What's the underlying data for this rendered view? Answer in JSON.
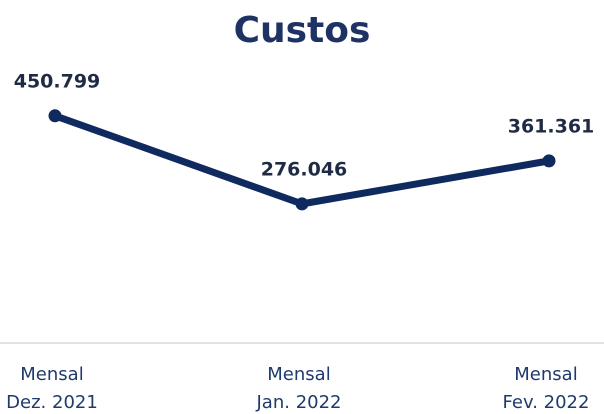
{
  "chart_data": {
    "type": "line",
    "title": "Custos",
    "categories": [
      "Mensal\nDez. 2021",
      "Mensal\nJan. 2022",
      "Mensal\nFev. 2022"
    ],
    "series": [
      {
        "name": "Custos",
        "color": "#0f2a5e",
        "values": [
          450799,
          276046,
          361361
        ],
        "value_labels": [
          "450.799",
          "276.046",
          "361.361"
        ]
      }
    ],
    "ylim": [
      0,
      500000
    ]
  }
}
